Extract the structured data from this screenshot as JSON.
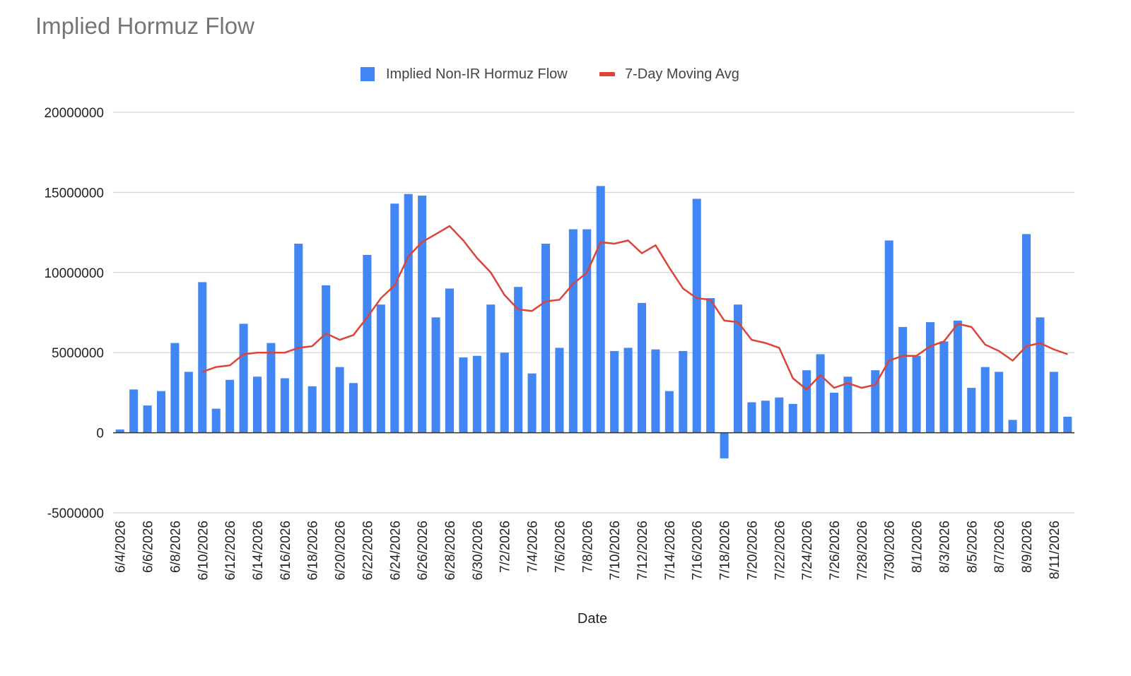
{
  "chart_data": {
    "type": "bar",
    "title": "Implied Hormuz Flow",
    "xlabel": "Date",
    "ylabel": "",
    "ylim": [
      -5000000,
      20000000
    ],
    "yticks": [
      20000000,
      15000000,
      10000000,
      5000000,
      0,
      -5000000
    ],
    "grid": true,
    "legend_position": "top-center",
    "x_tick_labels": [
      "6/4/2026",
      "6/6/2026",
      "6/8/2026",
      "6/10/2026",
      "6/12/2026",
      "6/14/2026",
      "6/16/2026",
      "6/18/2026",
      "6/20/2026",
      "6/22/2026",
      "6/24/2026",
      "6/26/2026",
      "6/28/2026",
      "6/30/2026",
      "7/2/2026",
      "7/4/2026",
      "7/6/2026",
      "7/8/2026",
      "7/10/2026",
      "7/12/2026",
      "7/14/2026",
      "7/16/2026",
      "7/18/2026",
      "7/20/2026",
      "7/22/2026",
      "7/24/2026",
      "7/26/2026",
      "7/28/2026",
      "7/30/2026",
      "8/1/2026",
      "8/3/2026",
      "8/5/2026",
      "8/7/2026",
      "8/9/2026",
      "8/11/2026"
    ],
    "categories": [
      "6/4/2026",
      "6/5/2026",
      "6/6/2026",
      "6/7/2026",
      "6/8/2026",
      "6/9/2026",
      "6/10/2026",
      "6/11/2026",
      "6/12/2026",
      "6/13/2026",
      "6/14/2026",
      "6/15/2026",
      "6/16/2026",
      "6/17/2026",
      "6/18/2026",
      "6/19/2026",
      "6/20/2026",
      "6/21/2026",
      "6/22/2026",
      "6/23/2026",
      "6/24/2026",
      "6/25/2026",
      "6/26/2026",
      "6/27/2026",
      "6/28/2026",
      "6/29/2026",
      "6/30/2026",
      "7/1/2026",
      "7/2/2026",
      "7/3/2026",
      "7/4/2026",
      "7/5/2026",
      "7/6/2026",
      "7/7/2026",
      "7/8/2026",
      "7/9/2026",
      "7/10/2026",
      "7/11/2026",
      "7/12/2026",
      "7/13/2026",
      "7/14/2026",
      "7/15/2026",
      "7/16/2026",
      "7/17/2026",
      "7/18/2026",
      "7/19/2026",
      "7/20/2026",
      "7/21/2026",
      "7/22/2026",
      "7/23/2026",
      "7/24/2026",
      "7/25/2026",
      "7/26/2026",
      "7/27/2026",
      "7/28/2026",
      "7/29/2026",
      "7/30/2026",
      "7/31/2026",
      "8/1/2026",
      "8/2/2026",
      "8/3/2026",
      "8/4/2026",
      "8/5/2026",
      "8/6/2026",
      "8/7/2026",
      "8/8/2026",
      "8/9/2026",
      "8/10/2026",
      "8/11/2026",
      "8/12/2026"
    ],
    "series": [
      {
        "name": "Implied Non-IR Hormuz Flow",
        "type": "bar",
        "color": "#4285F4",
        "values": [
          200000,
          2700000,
          1700000,
          2600000,
          5600000,
          3800000,
          9400000,
          1500000,
          3300000,
          6800000,
          3500000,
          5600000,
          3400000,
          11800000,
          2900000,
          9200000,
          4100000,
          3100000,
          11100000,
          8000000,
          14300000,
          14900000,
          14800000,
          7200000,
          9000000,
          4700000,
          4800000,
          8000000,
          5000000,
          9100000,
          3700000,
          11800000,
          5300000,
          12700000,
          12700000,
          15400000,
          5100000,
          5300000,
          8100000,
          5200000,
          2600000,
          5100000,
          14600000,
          8400000,
          -1600000,
          8000000,
          1900000,
          2000000,
          2200000,
          1800000,
          3900000,
          4900000,
          2500000,
          3500000,
          0,
          3900000,
          12000000,
          6600000,
          4800000,
          6900000,
          5700000,
          7000000,
          2800000,
          4100000,
          3800000,
          800000,
          12400000,
          7200000,
          3800000,
          1000000
        ]
      },
      {
        "name": "7-Day Moving Avg",
        "type": "line",
        "color": "#DB4437",
        "values": [
          null,
          null,
          null,
          null,
          null,
          null,
          3800000,
          4100000,
          4200000,
          4900000,
          5000000,
          5000000,
          5000000,
          5300000,
          5400000,
          6200000,
          5800000,
          6100000,
          7200000,
          8400000,
          9200000,
          11000000,
          11900000,
          12400000,
          12900000,
          12000000,
          10900000,
          10000000,
          8600000,
          7700000,
          7600000,
          8200000,
          8300000,
          9300000,
          10000000,
          11900000,
          11800000,
          12000000,
          11200000,
          11700000,
          10300000,
          9000000,
          8400000,
          8300000,
          7000000,
          6900000,
          5800000,
          5600000,
          5300000,
          3400000,
          2700000,
          3600000,
          2800000,
          3100000,
          2800000,
          3000000,
          4500000,
          4800000,
          4800000,
          5400000,
          5700000,
          6800000,
          6600000,
          5500000,
          5100000,
          4500000,
          5400000,
          5600000,
          5200000,
          4900000
        ]
      }
    ]
  }
}
